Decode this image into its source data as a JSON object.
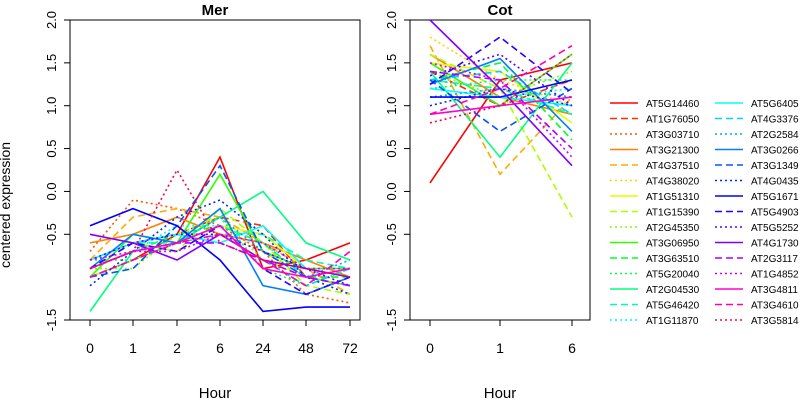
{
  "figure": {
    "ylabel": "centered expression",
    "yticks": [
      "-1.5",
      "-0.5",
      "0.0",
      "0.5",
      "1.0",
      "1.5",
      "2.0"
    ]
  },
  "chart_data": [
    {
      "type": "line",
      "title": "Mer",
      "xlabel": "Hour",
      "ylabel": "centered expression",
      "categories": [
        "0",
        "1",
        "2",
        "6",
        "24",
        "48",
        "72"
      ],
      "ylim": [
        -1.5,
        2.0
      ],
      "grid": false,
      "series": [
        {
          "name": "AT5G14460",
          "color": "#ff0000",
          "dash": "solid",
          "values": [
            -1.0,
            -0.8,
            -0.5,
            0.4,
            -0.9,
            -0.8,
            -0.6
          ]
        },
        {
          "name": "AT1G76050",
          "color": "#ff2a00",
          "dash": "dashed",
          "values": [
            -0.9,
            -0.6,
            -0.5,
            -0.3,
            -0.4,
            -1.0,
            -1.1
          ]
        },
        {
          "name": "AT3G03710",
          "color": "#ff5500",
          "dash": "dotted",
          "values": [
            -0.7,
            -0.1,
            -0.2,
            -0.4,
            -0.7,
            -1.2,
            -1.3
          ]
        },
        {
          "name": "AT3G21300",
          "color": "#ff8000",
          "dash": "solid",
          "values": [
            -0.6,
            -0.5,
            -0.3,
            -0.5,
            -0.6,
            -0.8,
            -1.0
          ]
        },
        {
          "name": "AT4G37510",
          "color": "#ffaa00",
          "dash": "dashed",
          "values": [
            -0.8,
            -0.3,
            -0.2,
            -0.3,
            -0.6,
            -0.9,
            -1.2
          ]
        },
        {
          "name": "AT4G38020",
          "color": "#ffd500",
          "dash": "dotted",
          "values": [
            -0.9,
            -0.7,
            -0.6,
            -0.5,
            -0.7,
            -1.0,
            -1.1
          ]
        },
        {
          "name": "AT1G51310",
          "color": "#dfff00",
          "dash": "solid",
          "values": [
            -1.0,
            -0.8,
            -0.6,
            -0.4,
            -0.5,
            -0.9,
            -1.0
          ]
        },
        {
          "name": "AT1G15390",
          "color": "#aaff00",
          "dash": "dashed",
          "values": [
            -0.8,
            -0.6,
            -0.7,
            -0.2,
            -0.6,
            -1.1,
            -1.2
          ]
        },
        {
          "name": "AT2G45350",
          "color": "#80ff00",
          "dash": "dotted",
          "values": [
            -0.9,
            -0.9,
            -0.5,
            -0.3,
            -0.8,
            -1.0,
            -1.1
          ]
        },
        {
          "name": "AT3G06950",
          "color": "#2bff00",
          "dash": "solid",
          "values": [
            -1.0,
            -0.5,
            -0.6,
            0.2,
            -0.7,
            -0.9,
            -0.9
          ]
        },
        {
          "name": "AT3G63510",
          "color": "#00ff2a",
          "dash": "dashed",
          "values": [
            -0.9,
            -0.7,
            -0.5,
            -0.4,
            -0.6,
            -1.0,
            -1.0
          ]
        },
        {
          "name": "AT5G20040",
          "color": "#00ff55",
          "dash": "dotted",
          "values": [
            -0.8,
            -0.8,
            -0.6,
            -0.3,
            -0.9,
            -1.1,
            -0.9
          ]
        },
        {
          "name": "AT2G04530",
          "color": "#00ff80",
          "dash": "solid",
          "values": [
            -1.4,
            -0.7,
            -0.6,
            -0.3,
            0.0,
            -0.6,
            -0.8
          ]
        },
        {
          "name": "AT5G46420",
          "color": "#00ffaa",
          "dash": "dashed",
          "values": [
            -0.9,
            -0.6,
            -0.6,
            -0.5,
            -0.5,
            -0.8,
            -0.9
          ]
        },
        {
          "name": "AT1G11870",
          "color": "#00ffd5",
          "dash": "dotted",
          "values": [
            -0.8,
            -0.7,
            -0.4,
            -0.4,
            -0.6,
            -1.0,
            -1.1
          ]
        },
        {
          "name": "AT5G6405",
          "color": "#00ffff",
          "dash": "solid",
          "values": [
            -0.8,
            -0.6,
            -0.5,
            -0.6,
            -0.4,
            -0.9,
            -1.0
          ]
        },
        {
          "name": "AT4G3376",
          "color": "#00d4ff",
          "dash": "dashed",
          "values": [
            -0.9,
            -0.7,
            -0.6,
            -0.5,
            -0.8,
            -1.1,
            -0.9
          ]
        },
        {
          "name": "AT2G2584",
          "color": "#00aaff",
          "dash": "dotted",
          "values": [
            -1.0,
            -0.8,
            -0.6,
            -0.3,
            -0.7,
            -1.0,
            -0.8
          ]
        },
        {
          "name": "AT3G0266",
          "color": "#0080ff",
          "dash": "solid",
          "values": [
            -0.9,
            -0.5,
            -0.6,
            -0.2,
            -1.1,
            -1.2,
            -1.0
          ]
        },
        {
          "name": "AT3G1349",
          "color": "#0055ff",
          "dash": "dashed",
          "values": [
            -1.0,
            -0.9,
            -0.4,
            0.3,
            -0.7,
            -1.0,
            -1.1
          ]
        },
        {
          "name": "AT4G0435",
          "color": "#002bff",
          "dash": "dotted",
          "values": [
            -1.1,
            -0.7,
            -0.3,
            -0.1,
            -0.5,
            -1.0,
            -1.2
          ]
        },
        {
          "name": "AT5G1671",
          "color": "#0000ff",
          "dash": "solid",
          "values": [
            -0.4,
            -0.2,
            -0.4,
            -0.8,
            -1.4,
            -1.35,
            -1.35
          ]
        },
        {
          "name": "AT5G4903",
          "color": "#2a00ff",
          "dash": "dashed",
          "values": [
            -0.9,
            -0.6,
            -0.7,
            -0.4,
            -0.9,
            -1.2,
            -1.0
          ]
        },
        {
          "name": "AT5G5252",
          "color": "#5500ff",
          "dash": "dotted",
          "values": [
            -0.8,
            -0.6,
            -0.5,
            -0.5,
            -0.7,
            -0.9,
            -1.1
          ]
        },
        {
          "name": "AT4G1730",
          "color": "#8000ff",
          "dash": "solid",
          "values": [
            -0.5,
            -0.6,
            -0.8,
            -0.5,
            -0.8,
            -0.9,
            -1.0
          ]
        },
        {
          "name": "AT2G3117",
          "color": "#aa00ff",
          "dash": "dashed",
          "values": [
            -0.9,
            -0.7,
            -0.6,
            -0.6,
            -0.8,
            -1.0,
            -1.1
          ]
        },
        {
          "name": "AT1G4852",
          "color": "#d400ff",
          "dash": "dotted",
          "values": [
            -0.8,
            -0.7,
            -0.7,
            -0.5,
            -0.6,
            -0.9,
            -0.9
          ]
        },
        {
          "name": "AT3G4811",
          "color": "#ff00d4",
          "dash": "solid",
          "values": [
            -0.9,
            -0.7,
            -0.6,
            -0.4,
            -0.9,
            -1.0,
            -0.9
          ]
        },
        {
          "name": "AT3G4610",
          "color": "#ff00aa",
          "dash": "dashed",
          "values": [
            -1.0,
            -0.8,
            -0.6,
            -0.5,
            -0.8,
            -1.1,
            -0.7
          ]
        },
        {
          "name": "AT3G5814",
          "color": "#ff0055",
          "dash": "dotted",
          "values": [
            -0.9,
            -0.7,
            0.25,
            -0.6,
            -0.8,
            -0.9,
            -1.0
          ]
        }
      ]
    },
    {
      "type": "line",
      "title": "Cot",
      "xlabel": "Hour",
      "ylabel": "centered expression",
      "categories": [
        "0",
        "1",
        "6"
      ],
      "ylim": [
        -1.5,
        2.0
      ],
      "grid": false,
      "series": [
        {
          "name": "AT5G14460",
          "color": "#ff0000",
          "dash": "solid",
          "values": [
            0.1,
            1.3,
            1.5
          ]
        },
        {
          "name": "AT1G76050",
          "color": "#ff2a00",
          "dash": "dashed",
          "values": [
            1.4,
            1.0,
            1.3
          ]
        },
        {
          "name": "AT3G03710",
          "color": "#ff5500",
          "dash": "dotted",
          "values": [
            1.3,
            1.2,
            1.1
          ]
        },
        {
          "name": "AT3G21300",
          "color": "#ff8000",
          "dash": "solid",
          "values": [
            1.6,
            1.1,
            0.9
          ]
        },
        {
          "name": "AT4G37510",
          "color": "#ffaa00",
          "dash": "dashed",
          "values": [
            1.7,
            0.2,
            1.1
          ]
        },
        {
          "name": "AT4G38020",
          "color": "#ffd500",
          "dash": "dotted",
          "values": [
            1.8,
            1.3,
            1.0
          ]
        },
        {
          "name": "AT1G51310",
          "color": "#dfff00",
          "dash": "solid",
          "values": [
            1.5,
            1.4,
            0.8
          ]
        },
        {
          "name": "AT1G15390",
          "color": "#aaff00",
          "dash": "dashed",
          "values": [
            1.6,
            1.2,
            -0.3
          ]
        },
        {
          "name": "AT2G45350",
          "color": "#80ff00",
          "dash": "dotted",
          "values": [
            1.4,
            1.1,
            1.4
          ]
        },
        {
          "name": "AT3G06950",
          "color": "#2bff00",
          "dash": "solid",
          "values": [
            1.5,
            1.0,
            1.6
          ]
        },
        {
          "name": "AT3G63510",
          "color": "#00ff2a",
          "dash": "dashed",
          "values": [
            1.3,
            1.5,
            0.6
          ]
        },
        {
          "name": "AT5G20040",
          "color": "#00ff55",
          "dash": "dotted",
          "values": [
            1.2,
            1.3,
            1.3
          ]
        },
        {
          "name": "AT2G04530",
          "color": "#00ff80",
          "dash": "solid",
          "values": [
            1.4,
            0.4,
            1.5
          ]
        },
        {
          "name": "AT5G46420",
          "color": "#00ffaa",
          "dash": "dashed",
          "values": [
            1.3,
            1.2,
            0.9
          ]
        },
        {
          "name": "AT1G11870",
          "color": "#00ffd5",
          "dash": "dotted",
          "values": [
            1.1,
            1.1,
            1.2
          ]
        },
        {
          "name": "AT5G6405",
          "color": "#00ffff",
          "dash": "solid",
          "values": [
            1.2,
            1.1,
            1.0
          ]
        },
        {
          "name": "AT4G3376",
          "color": "#00d4ff",
          "dash": "dashed",
          "values": [
            1.3,
            1.4,
            0.9
          ]
        },
        {
          "name": "AT2G2584",
          "color": "#00aaff",
          "dash": "dotted",
          "values": [
            1.1,
            1.2,
            1.1
          ]
        },
        {
          "name": "AT3G0266",
          "color": "#0080ff",
          "dash": "solid",
          "values": [
            1.25,
            1.55,
            0.7
          ]
        },
        {
          "name": "AT3G1349",
          "color": "#0055ff",
          "dash": "dashed",
          "values": [
            1.3,
            0.7,
            1.2
          ]
        },
        {
          "name": "AT4G0435",
          "color": "#002bff",
          "dash": "dotted",
          "values": [
            1.0,
            1.2,
            1.0
          ]
        },
        {
          "name": "AT5G1671",
          "color": "#0000ff",
          "dash": "solid",
          "values": [
            1.1,
            1.1,
            1.3
          ]
        },
        {
          "name": "AT5G4903",
          "color": "#2a00ff",
          "dash": "dashed",
          "values": [
            1.25,
            1.8,
            1.15
          ]
        },
        {
          "name": "AT5G5252",
          "color": "#5500ff",
          "dash": "dotted",
          "values": [
            1.35,
            1.6,
            1.0
          ]
        },
        {
          "name": "AT4G1730",
          "color": "#8000ff",
          "dash": "solid",
          "values": [
            2.0,
            1.2,
            0.3
          ]
        },
        {
          "name": "AT2G3117",
          "color": "#aa00ff",
          "dash": "dashed",
          "values": [
            1.4,
            1.3,
            0.5
          ]
        },
        {
          "name": "AT1G4852",
          "color": "#d400ff",
          "dash": "dotted",
          "values": [
            1.5,
            1.3,
            0.4
          ]
        },
        {
          "name": "AT3G4811",
          "color": "#ff00d4",
          "dash": "solid",
          "values": [
            0.9,
            1.0,
            1.1
          ]
        },
        {
          "name": "AT3G4610",
          "color": "#ff00aa",
          "dash": "dashed",
          "values": [
            0.9,
            1.2,
            1.7
          ]
        },
        {
          "name": "AT3G5814",
          "color": "#ff0055",
          "dash": "dotted",
          "values": [
            0.8,
            1.0,
            1.6
          ]
        }
      ]
    }
  ]
}
